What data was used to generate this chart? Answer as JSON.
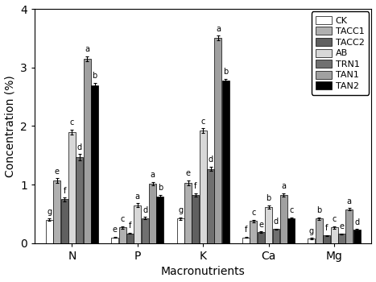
{
  "groups": [
    "N",
    "P",
    "K",
    "Ca",
    "Mg"
  ],
  "series_labels": [
    "CK",
    "TACC1",
    "TACC2",
    "AB",
    "TRN1",
    "TAN1",
    "TAN2"
  ],
  "bar_colors": [
    "#ffffff",
    "#b0b0b0",
    "#606060",
    "#d8d8d8",
    "#707070",
    "#a0a0a0",
    "#000000"
  ],
  "values": {
    "N": [
      0.4,
      1.07,
      0.75,
      1.9,
      1.47,
      3.15,
      2.7
    ],
    "P": [
      0.1,
      0.27,
      0.17,
      0.65,
      0.43,
      1.02,
      0.8
    ],
    "K": [
      0.42,
      1.03,
      0.82,
      1.92,
      1.27,
      3.5,
      2.78
    ],
    "Ca": [
      0.1,
      0.38,
      0.19,
      0.62,
      0.24,
      0.82,
      0.42
    ],
    "Mg": [
      0.08,
      0.42,
      0.13,
      0.27,
      0.16,
      0.58,
      0.23
    ]
  },
  "errors": {
    "N": [
      0.02,
      0.04,
      0.03,
      0.04,
      0.05,
      0.04,
      0.04
    ],
    "P": [
      0.01,
      0.02,
      0.01,
      0.03,
      0.02,
      0.03,
      0.03
    ],
    "K": [
      0.02,
      0.04,
      0.03,
      0.04,
      0.04,
      0.04,
      0.03
    ],
    "Ca": [
      0.01,
      0.02,
      0.01,
      0.03,
      0.01,
      0.03,
      0.02
    ],
    "Mg": [
      0.01,
      0.02,
      0.01,
      0.02,
      0.01,
      0.02,
      0.01
    ]
  },
  "letters": {
    "N": [
      "g",
      "e",
      "f",
      "c",
      "d",
      "a",
      "b"
    ],
    "P": [
      "e",
      "c",
      "f",
      "a",
      "d",
      "a",
      "b"
    ],
    "K": [
      "g",
      "e",
      "f",
      "c",
      "d",
      "a",
      "b"
    ],
    "Ca": [
      "f",
      "c",
      "e",
      "b",
      "d",
      "a",
      "c"
    ],
    "Mg": [
      "g",
      "b",
      "f",
      "c",
      "e",
      "a",
      "d"
    ]
  },
  "ylim": [
    0,
    4
  ],
  "yticks": [
    0,
    1,
    2,
    3,
    4
  ],
  "ylabel": "Concentration (%)",
  "xlabel": "Macronutrients",
  "figsize": [
    4.67,
    3.5
  ],
  "dpi": 100,
  "bar_width": 0.11,
  "letter_fontsize": 7,
  "axis_fontsize": 10,
  "legend_fontsize": 8
}
